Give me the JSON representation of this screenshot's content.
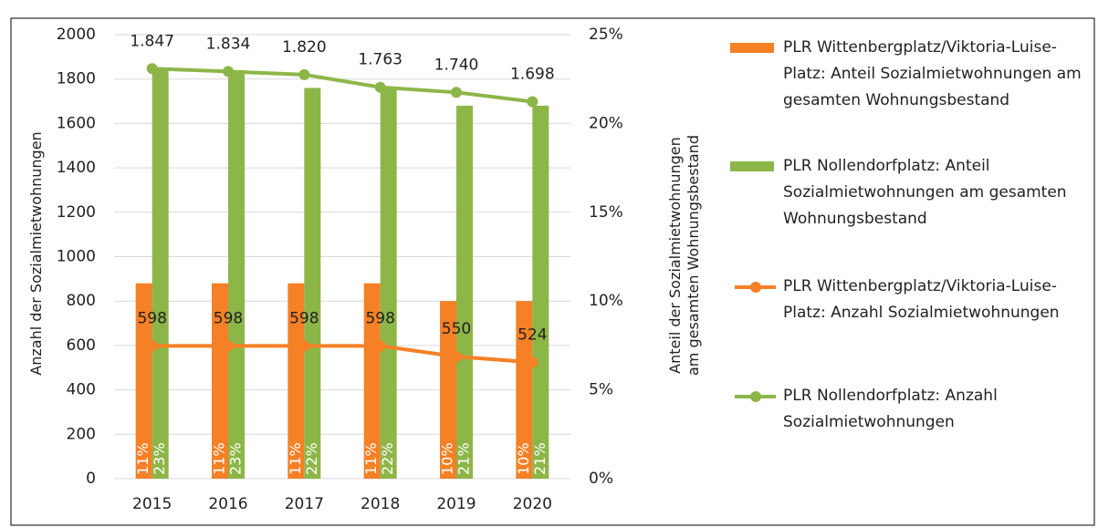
{
  "chart_data": {
    "type": "combo",
    "categories": [
      "2015",
      "2016",
      "2017",
      "2018",
      "2019",
      "2020"
    ],
    "ylabel": "Anzahl der Sozialmietwohnungen",
    "y2label": "Anteil der Sozialmietwohnungen am gesamten Wohnungsbestand",
    "ylim": [
      0,
      2000
    ],
    "yticks": [
      0,
      200,
      400,
      600,
      800,
      1000,
      1200,
      1400,
      1600,
      1800,
      2000
    ],
    "y2lim": [
      0,
      25
    ],
    "y2ticks": [
      {
        "value": 0,
        "label": "0%"
      },
      {
        "value": 5,
        "label": "5%"
      },
      {
        "value": 10,
        "label": "10%"
      },
      {
        "value": 15,
        "label": "15%"
      },
      {
        "value": 20,
        "label": "20%"
      },
      {
        "value": 25,
        "label": "25%"
      }
    ],
    "grid": true,
    "legend": "right",
    "series": [
      {
        "name": "PLR Wittenbergplatz/Viktoria-Luise-Platz: Anteil Sozialmietwohnungen am gesamten Wohnungsbestand",
        "type": "bar",
        "axis": "y2",
        "color": "#f58025",
        "values": [
          11,
          11,
          11,
          11,
          10,
          10
        ],
        "value_labels": [
          "11%",
          "11%",
          "11%",
          "11%",
          "10%",
          "10%"
        ]
      },
      {
        "name": "PLR Nollendorfplatz: Anteil Sozialmietwohnungen am gesamten Wohnungsbestand",
        "type": "bar",
        "axis": "y2",
        "color": "#8db648",
        "values": [
          23,
          23,
          22,
          22,
          21,
          21
        ],
        "value_labels": [
          "23%",
          "23%",
          "22%",
          "22%",
          "21%",
          "21%"
        ]
      },
      {
        "name": "PLR Wittenbergplatz/Viktoria-Luise-Platz: Anzahl Sozialmietwohnungen",
        "type": "line",
        "axis": "y",
        "color": "#f58025",
        "values": [
          598,
          598,
          598,
          598,
          550,
          524
        ]
      },
      {
        "name": "PLR Nollendorfplatz: Anzahl Sozialmietwohnungen",
        "type": "line",
        "axis": "y",
        "color": "#8db648",
        "values": [
          1847,
          1834,
          1820,
          1763,
          1740,
          1698
        ],
        "value_labels": [
          "1.847",
          "1.834",
          "1.820",
          "1.763",
          "1.740",
          "1.698"
        ]
      }
    ]
  }
}
